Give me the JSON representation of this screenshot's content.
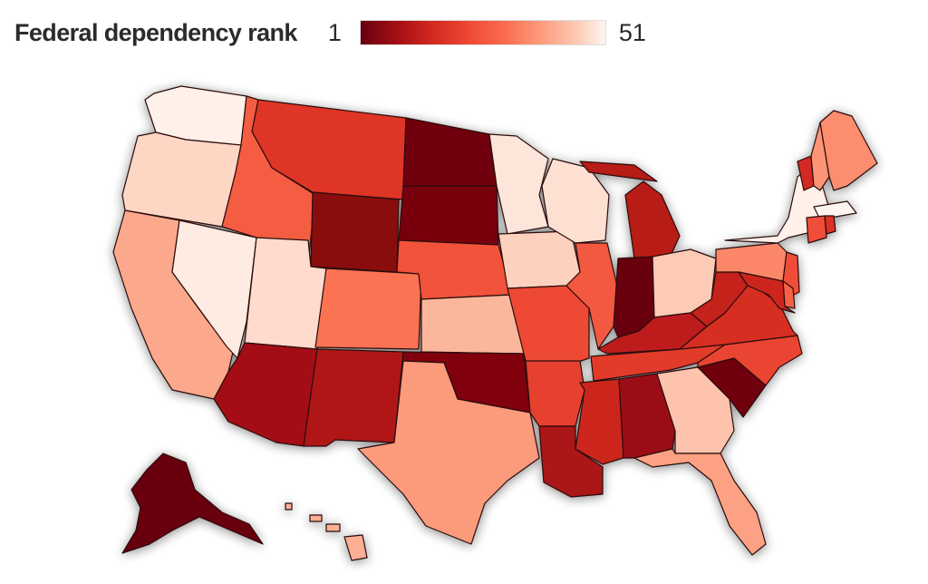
{
  "legend": {
    "title": "Federal dependency rank",
    "min_label": "1",
    "max_label": "51"
  },
  "scale": {
    "min": 1,
    "max": 51,
    "colors": [
      "#67000d",
      "#a50f15",
      "#d42a20",
      "#ef4a35",
      "#fb7050",
      "#fc9f81",
      "#fdd0bc",
      "#fff5f0"
    ]
  },
  "states": [
    {
      "id": "WA",
      "rank": 50
    },
    {
      "id": "OR",
      "rank": 45
    },
    {
      "id": "CA",
      "rank": 38
    },
    {
      "id": "NV",
      "rank": 49
    },
    {
      "id": "ID",
      "rank": 26
    },
    {
      "id": "MT",
      "rank": 18
    },
    {
      "id": "WY",
      "rank": 5
    },
    {
      "id": "UT",
      "rank": 46
    },
    {
      "id": "AZ",
      "rank": 8
    },
    {
      "id": "CO",
      "rank": 30
    },
    {
      "id": "NM",
      "rank": 10
    },
    {
      "id": "ND",
      "rank": 2
    },
    {
      "id": "SD",
      "rank": 3
    },
    {
      "id": "NE",
      "rank": 24
    },
    {
      "id": "KS",
      "rank": 40
    },
    {
      "id": "OK",
      "rank": 4
    },
    {
      "id": "TX",
      "rank": 36
    },
    {
      "id": "MN",
      "rank": 48
    },
    {
      "id": "IA",
      "rank": 44
    },
    {
      "id": "MO",
      "rank": 22
    },
    {
      "id": "AR",
      "rank": 20
    },
    {
      "id": "LA",
      "rank": 9
    },
    {
      "id": "WI",
      "rank": 47
    },
    {
      "id": "IL",
      "rank": 25
    },
    {
      "id": "MI",
      "rank": 11
    },
    {
      "id": "IN",
      "rank": 1
    },
    {
      "id": "OH",
      "rank": 43
    },
    {
      "id": "KY",
      "rank": 12
    },
    {
      "id": "TN",
      "rank": 19
    },
    {
      "id": "MS",
      "rank": 14
    },
    {
      "id": "AL",
      "rank": 7
    },
    {
      "id": "GA",
      "rank": 42
    },
    {
      "id": "FL",
      "rank": 37
    },
    {
      "id": "SC",
      "rank": 2
    },
    {
      "id": "NC",
      "rank": 21
    },
    {
      "id": "VA",
      "rank": 16
    },
    {
      "id": "WV",
      "rank": 13
    },
    {
      "id": "PA",
      "rank": 33
    },
    {
      "id": "NY",
      "rank": 50
    },
    {
      "id": "VT",
      "rank": 15
    },
    {
      "id": "NH",
      "rank": 35
    },
    {
      "id": "ME",
      "rank": 34
    },
    {
      "id": "MA",
      "rank": 51
    },
    {
      "id": "CT",
      "rank": 23
    },
    {
      "id": "RI",
      "rank": 17
    },
    {
      "id": "NJ",
      "rank": 23
    },
    {
      "id": "DE",
      "rank": 27
    },
    {
      "id": "MD",
      "rank": 14
    },
    {
      "id": "AK",
      "rank": 1
    },
    {
      "id": "HI",
      "rank": 39
    }
  ]
}
